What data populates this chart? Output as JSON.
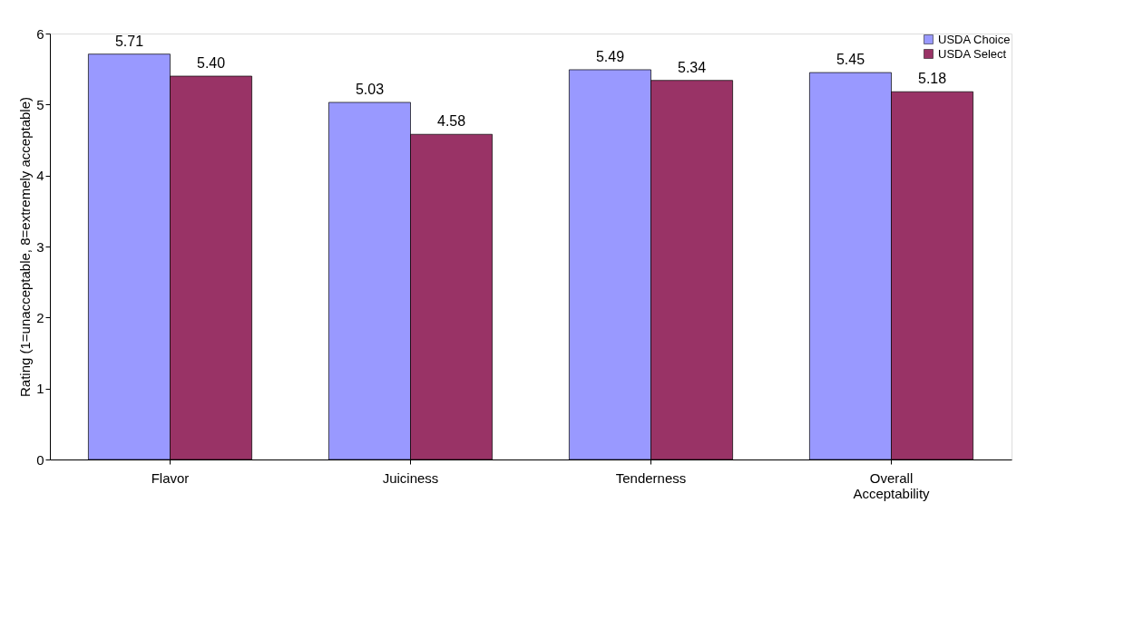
{
  "chart_data": {
    "type": "bar",
    "categories": [
      "Flavor",
      "Juiciness",
      "Tenderness",
      "Overall Acceptability"
    ],
    "ylabel": "Rating (1=unacceptable, 8=extremely acceptable)",
    "series": [
      {
        "name": "USDA Choice",
        "color": "#9999ff",
        "values": [
          5.71,
          5.03,
          5.49,
          5.45
        ],
        "value_labels": [
          "5.71",
          "5.03",
          "5.49",
          "5.45"
        ]
      },
      {
        "name": "USDA Select",
        "color": "#993366",
        "values": [
          5.4,
          4.58,
          5.34,
          5.18
        ],
        "value_labels": [
          "5.40",
          "4.58",
          "5.34",
          "5.18"
        ]
      }
    ],
    "ylim": [
      0,
      6
    ],
    "yticks": [
      0,
      1,
      2,
      3,
      4,
      5,
      6
    ],
    "grid": false,
    "legend": "top right"
  }
}
